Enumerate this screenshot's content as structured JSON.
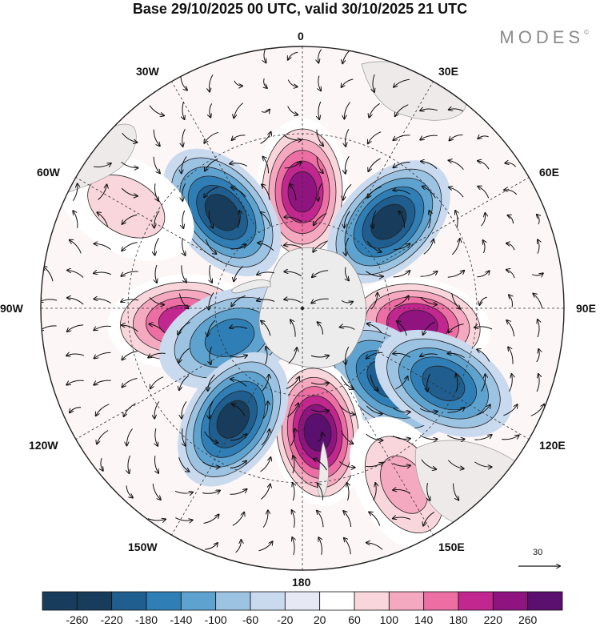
{
  "title": "Base 29/10/2025 00 UTC, valid 30/10/2025 21 UTC",
  "brand": "MODES",
  "brand_mark": "©",
  "longitude_labels": {
    "top": "0",
    "top_left": "30W",
    "top_right": "30E",
    "upper_left": "60W",
    "upper_right": "60E",
    "left": "90W",
    "right": "90E",
    "lower_left": "120W",
    "lower_right": "120E",
    "bottom_left": "150W",
    "bottom_right": "150E",
    "bottom": "180"
  },
  "reference_vector": {
    "value": "30"
  },
  "colorbar": {
    "tick_labels": [
      "-260",
      "-220",
      "-180",
      "-140",
      "-100",
      "-60",
      "-20",
      "20",
      "60",
      "100",
      "140",
      "180",
      "220",
      "260"
    ],
    "colors": [
      "#183d5c",
      "#1f5e8e",
      "#2f7fb6",
      "#5ea3cf",
      "#9cc3e2",
      "#c9d9ee",
      "#e6e8f4",
      "#ffffff",
      "#f9d6dc",
      "#f5a9c0",
      "#ec6ea3",
      "#c2268f",
      "#8f1480",
      "#5b0f6e"
    ]
  },
  "anomaly_centres": [
    {
      "sign": "positive",
      "value": 240,
      "lon_deg": 0,
      "lat_deg": -50
    },
    {
      "sign": "negative",
      "value": -220,
      "lon_deg": -40,
      "lat_deg": -47
    },
    {
      "sign": "negative",
      "value": -220,
      "lon_deg": 45,
      "lat_deg": -48
    },
    {
      "sign": "positive",
      "value": 240,
      "lon_deg": 98,
      "lat_deg": -50
    },
    {
      "sign": "positive",
      "value": 200,
      "lon_deg": -96,
      "lat_deg": -48
    },
    {
      "sign": "negative",
      "value": -140,
      "lon_deg": -112,
      "lat_deg": -63
    },
    {
      "sign": "negative",
      "value": -200,
      "lon_deg": 130,
      "lat_deg": -52
    },
    {
      "sign": "negative",
      "value": -180,
      "lon_deg": 118,
      "lat_deg": -35
    },
    {
      "sign": "positive",
      "value": 260,
      "lon_deg": 173,
      "lat_deg": -47
    },
    {
      "sign": "negative",
      "value": -220,
      "lon_deg": -148,
      "lat_deg": -45
    },
    {
      "sign": "positive",
      "value": 60,
      "lon_deg": -60,
      "lat_deg": -20
    },
    {
      "sign": "positive",
      "value": 100,
      "lon_deg": 150,
      "lat_deg": -20
    }
  ]
}
